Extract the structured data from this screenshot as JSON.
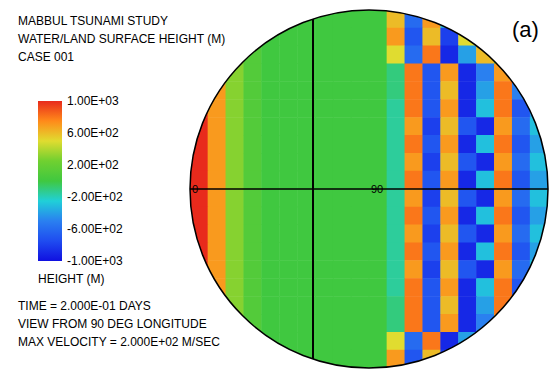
{
  "chart_data": {
    "type": "heatmap",
    "title": "MABBUL TSUNAMI STUDY",
    "subtitle": [
      "WATER/LAND SURFACE HEIGHT (M)",
      "CASE 001"
    ],
    "panel_label": "(a)",
    "annotations": [
      "TIME  = 2.000E-01 DAYS",
      "VIEW FROM  90 DEG LONGITUDE",
      "MAX VELOCITY = 2.000E+02 M/SEC"
    ],
    "longitude_labels": [
      0,
      90
    ],
    "color_bar": {
      "label": "HEIGHT (M)",
      "range": [
        -1000,
        1000
      ],
      "ticks": [
        {
          "value": 1000,
          "label": "1.00E+03"
        },
        {
          "value": 600,
          "label": "6.00E+02"
        },
        {
          "value": 200,
          "label": "2.00E+02"
        },
        {
          "value": -200,
          "label": "-2.00E+02"
        },
        {
          "value": -600,
          "label": "-6.00E+02"
        },
        {
          "value": -1000,
          "label": "-1.00E+03"
        }
      ]
    },
    "heights": [
      [
        1000,
        700,
        300,
        100,
        0,
        0,
        0,
        0,
        0,
        0,
        0,
        600,
        -600,
        700,
        -300,
        0,
        0,
        0,
        0,
        0
      ],
      [
        1000,
        700,
        300,
        100,
        0,
        0,
        0,
        0,
        0,
        0,
        0,
        700,
        -700,
        600,
        -800,
        500,
        0,
        0,
        0,
        0
      ],
      [
        1000,
        700,
        300,
        100,
        0,
        0,
        0,
        0,
        0,
        0,
        0,
        500,
        -600,
        800,
        -900,
        -400,
        600,
        0,
        0,
        0
      ],
      [
        1000,
        700,
        300,
        100,
        0,
        0,
        0,
        0,
        0,
        0,
        0,
        -100,
        800,
        -700,
        700,
        -900,
        -500,
        700,
        0,
        0
      ],
      [
        1000,
        700,
        300,
        100,
        0,
        0,
        0,
        0,
        0,
        0,
        0,
        -100,
        800,
        -700,
        600,
        -900,
        -400,
        800,
        -500,
        0
      ],
      [
        1000,
        700,
        300,
        100,
        0,
        0,
        0,
        0,
        0,
        0,
        0,
        -150,
        800,
        -700,
        700,
        -900,
        -300,
        800,
        -700,
        -400
      ],
      [
        1000,
        700,
        300,
        100,
        0,
        0,
        0,
        0,
        0,
        0,
        0,
        -150,
        700,
        -800,
        600,
        -700,
        -900,
        700,
        -600,
        -300
      ],
      [
        1000,
        700,
        300,
        100,
        0,
        0,
        0,
        0,
        0,
        0,
        0,
        -150,
        800,
        -700,
        700,
        -900,
        -300,
        800,
        -700,
        -400
      ],
      [
        1000,
        700,
        300,
        100,
        0,
        0,
        0,
        0,
        0,
        0,
        0,
        -150,
        700,
        -800,
        600,
        -700,
        -900,
        700,
        -600,
        -300
      ],
      [
        1000,
        700,
        300,
        100,
        0,
        0,
        0,
        0,
        0,
        0,
        0,
        -150,
        800,
        -700,
        700,
        -900,
        -300,
        800,
        -700,
        -400
      ],
      [
        1000,
        700,
        300,
        100,
        0,
        0,
        0,
        0,
        0,
        0,
        0,
        -150,
        700,
        -800,
        600,
        -700,
        -900,
        700,
        -600,
        -300
      ],
      [
        1000,
        700,
        300,
        100,
        0,
        0,
        0,
        0,
        0,
        0,
        0,
        -150,
        800,
        -700,
        700,
        -900,
        -300,
        800,
        -700,
        -400
      ],
      [
        1000,
        700,
        300,
        100,
        0,
        0,
        0,
        0,
        0,
        0,
        0,
        -150,
        700,
        -800,
        600,
        -700,
        -900,
        700,
        -600,
        -300
      ],
      [
        1000,
        700,
        300,
        100,
        0,
        0,
        0,
        0,
        0,
        0,
        0,
        -150,
        800,
        -700,
        700,
        -900,
        -300,
        800,
        -700,
        -400
      ],
      [
        1000,
        700,
        300,
        100,
        0,
        0,
        0,
        0,
        0,
        0,
        0,
        -150,
        700,
        -800,
        600,
        -700,
        -900,
        700,
        -600,
        -300
      ],
      [
        1000,
        700,
        300,
        100,
        0,
        0,
        0,
        0,
        0,
        0,
        0,
        -150,
        800,
        -700,
        700,
        -900,
        -300,
        800,
        -700,
        -400
      ],
      [
        1000,
        700,
        300,
        100,
        0,
        0,
        0,
        0,
        0,
        0,
        0,
        -100,
        800,
        -700,
        600,
        -900,
        -400,
        800,
        -500,
        0
      ],
      [
        1000,
        700,
        300,
        100,
        0,
        0,
        0,
        0,
        0,
        0,
        0,
        -100,
        800,
        -700,
        700,
        -900,
        -500,
        700,
        0,
        0
      ],
      [
        1000,
        700,
        300,
        100,
        0,
        0,
        0,
        0,
        0,
        0,
        0,
        500,
        -600,
        800,
        -900,
        -400,
        600,
        0,
        0,
        0
      ],
      [
        1000,
        700,
        300,
        100,
        0,
        0,
        0,
        0,
        0,
        0,
        0,
        700,
        -700,
        600,
        -800,
        500,
        0,
        0,
        0,
        0
      ]
    ]
  }
}
